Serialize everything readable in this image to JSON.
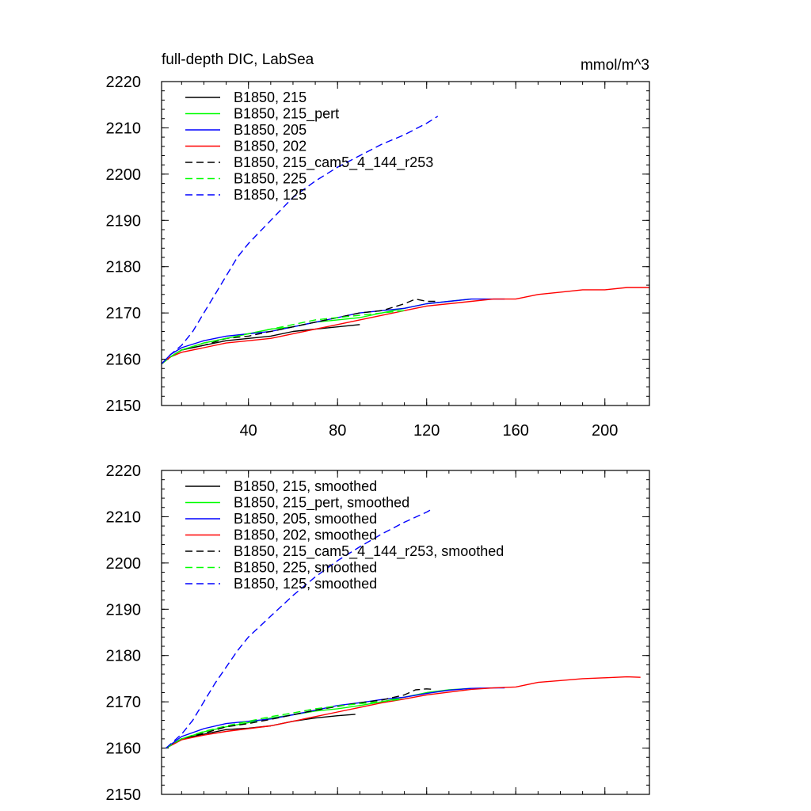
{
  "chart_data": [
    {
      "type": "line",
      "title": "full-depth DIC, LabSea",
      "units": "mmol/m^3",
      "xlabel": "",
      "ylabel": "",
      "xlim": [
        1,
        220
      ],
      "ylim": [
        2150,
        2220
      ],
      "x_ticks": [
        40,
        80,
        120,
        160,
        200
      ],
      "y_ticks": [
        2150,
        2160,
        2170,
        2180,
        2190,
        2200,
        2210,
        2220
      ],
      "legend": "top-left",
      "series": [
        {
          "name": "B1850, 215",
          "color": "#000000",
          "dash": "solid",
          "x": [
            1,
            5,
            10,
            20,
            30,
            40,
            50,
            60,
            70,
            80,
            90
          ],
          "y": [
            2159,
            2160.5,
            2162,
            2163,
            2164,
            2164.5,
            2165,
            2166,
            2166.5,
            2167,
            2167.5
          ]
        },
        {
          "name": "B1850, 215_pert",
          "color": "#00ff00",
          "dash": "solid",
          "x": [
            1,
            5,
            10,
            20,
            30,
            40,
            50,
            60,
            70,
            80,
            90,
            100,
            110,
            120,
            130,
            140
          ],
          "y": [
            2159,
            2160.5,
            2162,
            2163.5,
            2164.5,
            2165.5,
            2166.5,
            2167,
            2168,
            2168.5,
            2169,
            2170,
            2171,
            2172,
            2172.5,
            2173
          ]
        },
        {
          "name": "B1850, 205",
          "color": "#0000ff",
          "dash": "solid",
          "x": [
            1,
            5,
            10,
            20,
            30,
            40,
            50,
            60,
            70,
            80,
            90,
            100,
            110,
            120,
            130,
            140,
            150,
            155
          ],
          "y": [
            2159,
            2161,
            2162.5,
            2164,
            2165,
            2165.5,
            2166,
            2167,
            2168,
            2169,
            2170,
            2170.5,
            2171,
            2172,
            2172.5,
            2173,
            2173,
            2173
          ]
        },
        {
          "name": "B1850, 202",
          "color": "#ff0000",
          "dash": "solid",
          "x": [
            1,
            5,
            10,
            20,
            30,
            40,
            50,
            60,
            70,
            80,
            90,
            100,
            110,
            120,
            130,
            140,
            150,
            160,
            170,
            180,
            190,
            200,
            210,
            220
          ],
          "y": [
            2159,
            2160.5,
            2161.5,
            2162.5,
            2163.5,
            2164,
            2164.5,
            2165.5,
            2166.5,
            2167.5,
            2168.5,
            2169.5,
            2170.5,
            2171.5,
            2172,
            2172.5,
            2173,
            2173,
            2174,
            2174.5,
            2175,
            2175,
            2175.5,
            2175.5
          ]
        },
        {
          "name": "B1850, 215_cam5_4_144_r253",
          "color": "#000000",
          "dash": "dashed",
          "x": [
            1,
            5,
            10,
            20,
            30,
            40,
            50,
            60,
            70,
            80,
            90,
            100,
            110,
            115,
            120,
            125
          ],
          "y": [
            2159,
            2160.5,
            2162,
            2163,
            2164.5,
            2165,
            2166,
            2167,
            2168,
            2169,
            2170,
            2170.5,
            2172,
            2173,
            2172.5,
            2172.5
          ]
        },
        {
          "name": "B1850, 225",
          "color": "#00ff00",
          "dash": "dashed",
          "x": [
            1,
            5,
            10,
            20,
            30,
            40,
            50,
            60,
            70,
            80,
            90,
            100,
            110
          ],
          "y": [
            2159,
            2160.5,
            2162,
            2163.5,
            2164.5,
            2165.5,
            2166.5,
            2167.5,
            2168.5,
            2169,
            2169.5,
            2170,
            2170.5
          ]
        },
        {
          "name": "B1850, 125",
          "color": "#0000ff",
          "dash": "dashed",
          "x": [
            1,
            5,
            10,
            15,
            20,
            25,
            30,
            35,
            40,
            50,
            60,
            70,
            80,
            90,
            100,
            110,
            120,
            125
          ],
          "y": [
            2159,
            2161,
            2163,
            2166,
            2170,
            2174,
            2178,
            2182,
            2185,
            2190,
            2195,
            2198.5,
            2201.5,
            2204,
            2206.5,
            2208.5,
            2211,
            2212.5
          ]
        }
      ]
    },
    {
      "type": "line",
      "xlabel": "",
      "ylabel": "",
      "xlim": [
        1,
        220
      ],
      "ylim": [
        2150,
        2220
      ],
      "y_ticks": [
        2150,
        2160,
        2170,
        2180,
        2190,
        2200,
        2210,
        2220
      ],
      "legend": "top-left",
      "series": [
        {
          "name": "B1850, 215, smoothed",
          "color": "#000000",
          "dash": "solid",
          "x": [
            3,
            10,
            20,
            30,
            40,
            50,
            60,
            70,
            80,
            88
          ],
          "y": [
            2160,
            2162,
            2163,
            2164,
            2164.3,
            2164.8,
            2165.8,
            2166.5,
            2167,
            2167.3
          ]
        },
        {
          "name": "B1850, 215_pert, smoothed",
          "color": "#00ff00",
          "dash": "solid",
          "x": [
            3,
            10,
            20,
            30,
            40,
            50,
            60,
            70,
            80,
            90,
            100,
            110,
            120,
            130,
            140
          ],
          "y": [
            2160,
            2162,
            2163.5,
            2164.6,
            2165.5,
            2166.5,
            2167.2,
            2168,
            2168.5,
            2169.2,
            2170,
            2171,
            2172,
            2172.6,
            2172.9
          ]
        },
        {
          "name": "B1850, 205, smoothed",
          "color": "#0000ff",
          "dash": "solid",
          "x": [
            3,
            10,
            20,
            30,
            40,
            50,
            60,
            70,
            80,
            90,
            100,
            110,
            120,
            130,
            140,
            150,
            155
          ],
          "y": [
            2160,
            2162.5,
            2164.2,
            2165.3,
            2165.8,
            2166.3,
            2167.2,
            2168.2,
            2169.2,
            2169.8,
            2170.5,
            2171,
            2171.8,
            2172.5,
            2172.9,
            2173,
            2173
          ]
        },
        {
          "name": "B1850, 202, smoothed",
          "color": "#ff0000",
          "dash": "solid",
          "x": [
            3,
            10,
            20,
            30,
            40,
            50,
            60,
            70,
            80,
            90,
            100,
            110,
            120,
            130,
            140,
            150,
            160,
            170,
            180,
            190,
            200,
            210,
            216
          ],
          "y": [
            2160,
            2161.8,
            2162.8,
            2163.6,
            2164.2,
            2164.8,
            2165.8,
            2166.8,
            2167.8,
            2168.8,
            2169.8,
            2170.6,
            2171.5,
            2172.1,
            2172.7,
            2173,
            2173.2,
            2174.2,
            2174.6,
            2175,
            2175.2,
            2175.4,
            2175.3
          ]
        },
        {
          "name": "B1850, 215_cam5_4_144_r253, smoothed",
          "color": "#000000",
          "dash": "dashed",
          "x": [
            3,
            10,
            20,
            30,
            40,
            50,
            60,
            70,
            80,
            90,
            100,
            110,
            115,
            120,
            123
          ],
          "y": [
            2160,
            2162,
            2163.2,
            2164.6,
            2165.3,
            2166.2,
            2167.2,
            2168.2,
            2169,
            2169.8,
            2170.4,
            2171.5,
            2172.6,
            2172.8,
            2172.7
          ]
        },
        {
          "name": "B1850, 225, smoothed",
          "color": "#00ff00",
          "dash": "dashed",
          "x": [
            3,
            10,
            20,
            30,
            40,
            50,
            60,
            70,
            80,
            90,
            100,
            108
          ],
          "y": [
            2160,
            2162,
            2163.6,
            2164.8,
            2165.8,
            2166.8,
            2167.6,
            2168.5,
            2169.1,
            2169.6,
            2170.1,
            2170.5
          ]
        },
        {
          "name": "B1850, 125, smoothed",
          "color": "#0000ff",
          "dash": "dashed",
          "x": [
            3,
            10,
            15,
            20,
            25,
            30,
            35,
            40,
            50,
            60,
            70,
            80,
            90,
            100,
            110,
            120,
            123
          ],
          "y": [
            2160,
            2163,
            2166,
            2170,
            2174,
            2177.5,
            2181,
            2184,
            2188.5,
            2193,
            2197,
            2200.5,
            2203.5,
            2206.3,
            2208.8,
            2211,
            2211.8
          ]
        }
      ]
    }
  ]
}
